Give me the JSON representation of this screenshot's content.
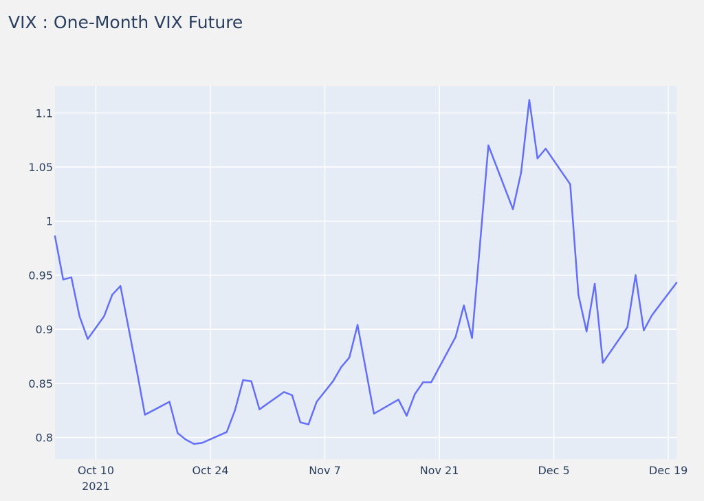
{
  "chart_data": {
    "type": "line",
    "title": "VIX : One-Month VIX Future",
    "xlabel": "",
    "ylabel": "",
    "grid": true,
    "legend": "none",
    "xlim": [
      "2021-10-05",
      "2021-12-20"
    ],
    "ylim": [
      0.78,
      1.125
    ],
    "x_ticks": [
      {
        "date": "2021-10-10",
        "label": "Oct 10",
        "sublabel": "2021"
      },
      {
        "date": "2021-10-24",
        "label": "Oct 24",
        "sublabel": ""
      },
      {
        "date": "2021-11-07",
        "label": "Nov 7",
        "sublabel": ""
      },
      {
        "date": "2021-11-21",
        "label": "Nov 21",
        "sublabel": ""
      },
      {
        "date": "2021-12-05",
        "label": "Dec 5",
        "sublabel": ""
      },
      {
        "date": "2021-12-19",
        "label": "Dec 19",
        "sublabel": ""
      }
    ],
    "y_ticks": [
      {
        "value": 0.8,
        "label": "0.8"
      },
      {
        "value": 0.85,
        "label": "0.85"
      },
      {
        "value": 0.9,
        "label": "0.9"
      },
      {
        "value": 0.95,
        "label": "0.95"
      },
      {
        "value": 1.0,
        "label": "1"
      },
      {
        "value": 1.05,
        "label": "1.05"
      },
      {
        "value": 1.1,
        "label": "1.1"
      }
    ],
    "series": [
      {
        "color": "#636efa",
        "points": [
          [
            "2021-10-05",
            0.986
          ],
          [
            "2021-10-06",
            0.946
          ],
          [
            "2021-10-07",
            0.948
          ],
          [
            "2021-10-08",
            0.912
          ],
          [
            "2021-10-09",
            0.891
          ],
          [
            "2021-10-11",
            0.912
          ],
          [
            "2021-10-12",
            0.932
          ],
          [
            "2021-10-13",
            0.94
          ],
          [
            "2021-10-15",
            0.862
          ],
          [
            "2021-10-16",
            0.821
          ],
          [
            "2021-10-19",
            0.833
          ],
          [
            "2021-10-20",
            0.804
          ],
          [
            "2021-10-21",
            0.798
          ],
          [
            "2021-10-22",
            0.794
          ],
          [
            "2021-10-23",
            0.795
          ],
          [
            "2021-10-26",
            0.805
          ],
          [
            "2021-10-27",
            0.825
          ],
          [
            "2021-10-28",
            0.853
          ],
          [
            "2021-10-29",
            0.852
          ],
          [
            "2021-10-30",
            0.826
          ],
          [
            "2021-11-02",
            0.842
          ],
          [
            "2021-11-03",
            0.839
          ],
          [
            "2021-11-04",
            0.814
          ],
          [
            "2021-11-05",
            0.812
          ],
          [
            "2021-11-06",
            0.833
          ],
          [
            "2021-11-08",
            0.852
          ],
          [
            "2021-11-09",
            0.865
          ],
          [
            "2021-11-10",
            0.874
          ],
          [
            "2021-11-11",
            0.904
          ],
          [
            "2021-11-13",
            0.822
          ],
          [
            "2021-11-16",
            0.835
          ],
          [
            "2021-11-17",
            0.82
          ],
          [
            "2021-11-18",
            0.84
          ],
          [
            "2021-11-19",
            0.851
          ],
          [
            "2021-11-20",
            0.851
          ],
          [
            "2021-11-23",
            0.893
          ],
          [
            "2021-11-24",
            0.922
          ],
          [
            "2021-11-25",
            0.892
          ],
          [
            "2021-11-27",
            1.07
          ],
          [
            "2021-11-30",
            1.011
          ],
          [
            "2021-12-01",
            1.045
          ],
          [
            "2021-12-02",
            1.112
          ],
          [
            "2021-12-03",
            1.058
          ],
          [
            "2021-12-04",
            1.067
          ],
          [
            "2021-12-07",
            1.034
          ],
          [
            "2021-12-08",
            0.932
          ],
          [
            "2021-12-09",
            0.898
          ],
          [
            "2021-12-10",
            0.942
          ],
          [
            "2021-12-11",
            0.869
          ],
          [
            "2021-12-14",
            0.902
          ],
          [
            "2021-12-15",
            0.95
          ],
          [
            "2021-12-16",
            0.899
          ],
          [
            "2021-12-17",
            0.913
          ],
          [
            "2021-12-18",
            0.923
          ],
          [
            "2021-12-20",
            0.943
          ]
        ]
      }
    ]
  }
}
